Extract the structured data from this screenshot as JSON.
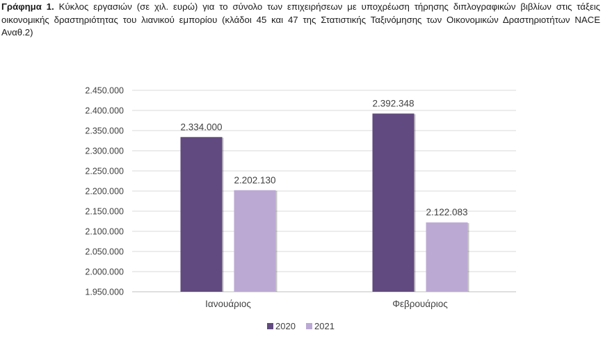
{
  "caption": {
    "lead": "Γράφημα 1.",
    "text": " Κύκλος εργασιών (σε χιλ. ευρώ) για το σύνολο των επιχειρήσεων με υποχρέωση τήρησης διπλογραφικών βιβλίων στις τάξεις οικονομικής δραστηριότητας του λιανικού εμπορίου (κλάδοι 45 και 47 της Στατιστικής Ταξινόμησης των Οικονομικών Δραστηριοτήτων NACE Αναθ.2)"
  },
  "chart_data": {
    "type": "bar",
    "categories": [
      "Ιανουάριος",
      "Φεβρουάριος"
    ],
    "series": [
      {
        "name": "2020",
        "values": [
          2334000,
          2392348
        ],
        "labels": [
          "2.334.000",
          "2.392.348"
        ],
        "color": "#614a7f"
      },
      {
        "name": "2021",
        "values": [
          2202130,
          2122083
        ],
        "labels": [
          "2.202.130",
          "2.122.083"
        ],
        "color": "#bba9d4"
      }
    ],
    "yticks": [
      "1.950.000",
      "2.000.000",
      "2.050.000",
      "2.100.000",
      "2.150.000",
      "2.200.000",
      "2.250.000",
      "2.300.000",
      "2.350.000",
      "2.400.000",
      "2.450.000"
    ],
    "ylim": [
      1950000,
      2450000
    ],
    "grid": true,
    "legend": "bottom",
    "title": "",
    "xlabel": "",
    "ylabel": ""
  }
}
